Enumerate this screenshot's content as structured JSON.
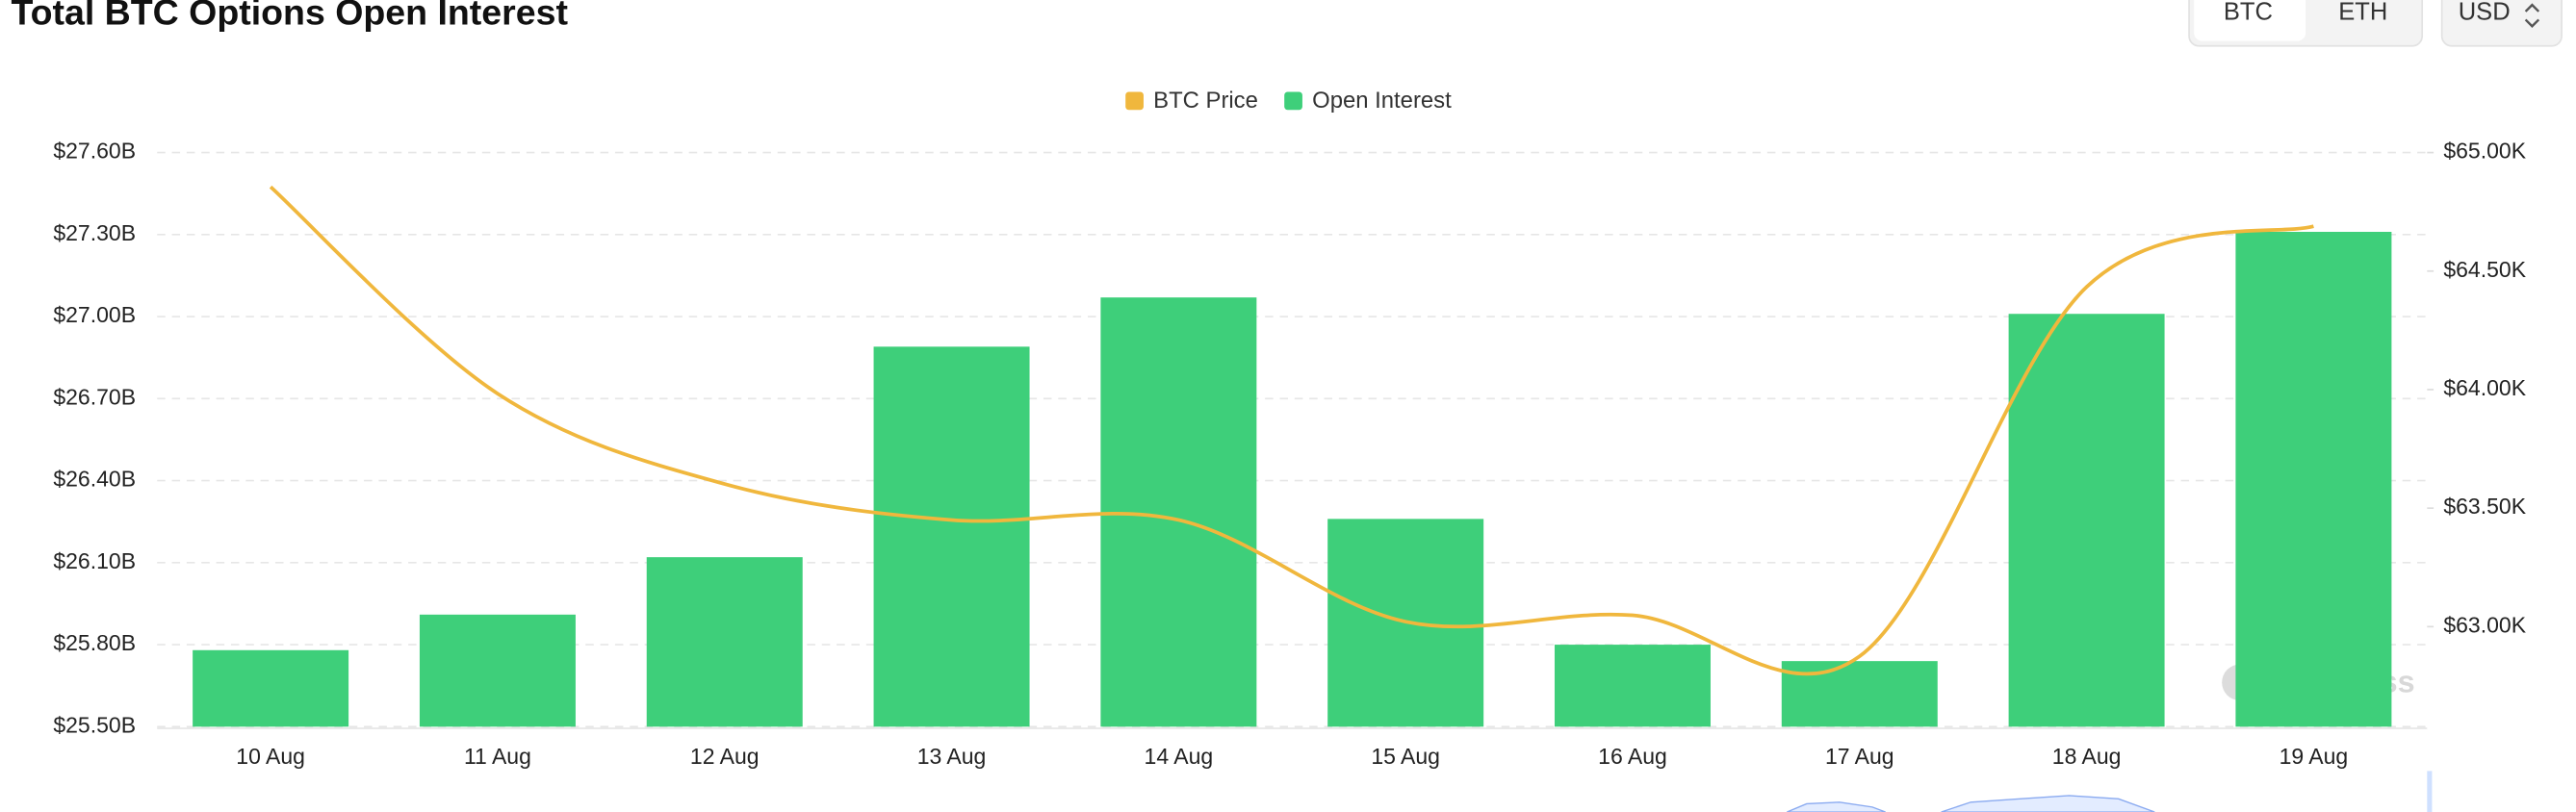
{
  "chart_data": {
    "type": "bar",
    "title": "Total BTC Options Open Interest",
    "controls": {
      "assets": [
        "BTC",
        "ETH"
      ],
      "currency": "USD"
    },
    "watermark": "coinglass",
    "categories": [
      "10 Aug",
      "11 Aug",
      "12 Aug",
      "13 Aug",
      "14 Aug",
      "15 Aug",
      "16 Aug",
      "17 Aug",
      "18 Aug",
      "19 Aug"
    ],
    "series": [
      {
        "name": "BTC Price",
        "type": "line",
        "axis": "y2",
        "color": "#f0b73d",
        "values": [
          64855,
          63983,
          63602,
          63450,
          63450,
          63021,
          63048,
          62875,
          64433,
          64689
        ]
      },
      {
        "name": "Open Interest",
        "type": "bar",
        "color": "#3ecf7a",
        "values": [
          25.78,
          25.91,
          26.12,
          26.89,
          27.07,
          26.26,
          25.8,
          25.74,
          27.01,
          27.31
        ]
      }
    ],
    "ylim": [
      25.5,
      27.6
    ],
    "yticks": [
      {
        "value": 25.5,
        "label": "$25.50B"
      },
      {
        "value": 25.8,
        "label": "$25.80B"
      },
      {
        "value": 26.1,
        "label": "$26.10B"
      },
      {
        "value": 26.4,
        "label": "$26.40B"
      },
      {
        "value": 26.7,
        "label": "$26.70B"
      },
      {
        "value": 27.0,
        "label": "$27.00B"
      },
      {
        "value": 27.3,
        "label": "$27.30B"
      },
      {
        "value": 27.6,
        "label": "$27.60B"
      }
    ],
    "y2lim": [
      62578,
      65000
    ],
    "y2ticks": [
      {
        "value": 63000,
        "label": "$63.00K"
      },
      {
        "value": 63500,
        "label": "$63.50K"
      },
      {
        "value": 64000,
        "label": "$64.00K"
      },
      {
        "value": 64500,
        "label": "$64.50K"
      },
      {
        "value": 65000,
        "label": "$65.00K"
      }
    ],
    "grid": true,
    "legend": "top"
  }
}
